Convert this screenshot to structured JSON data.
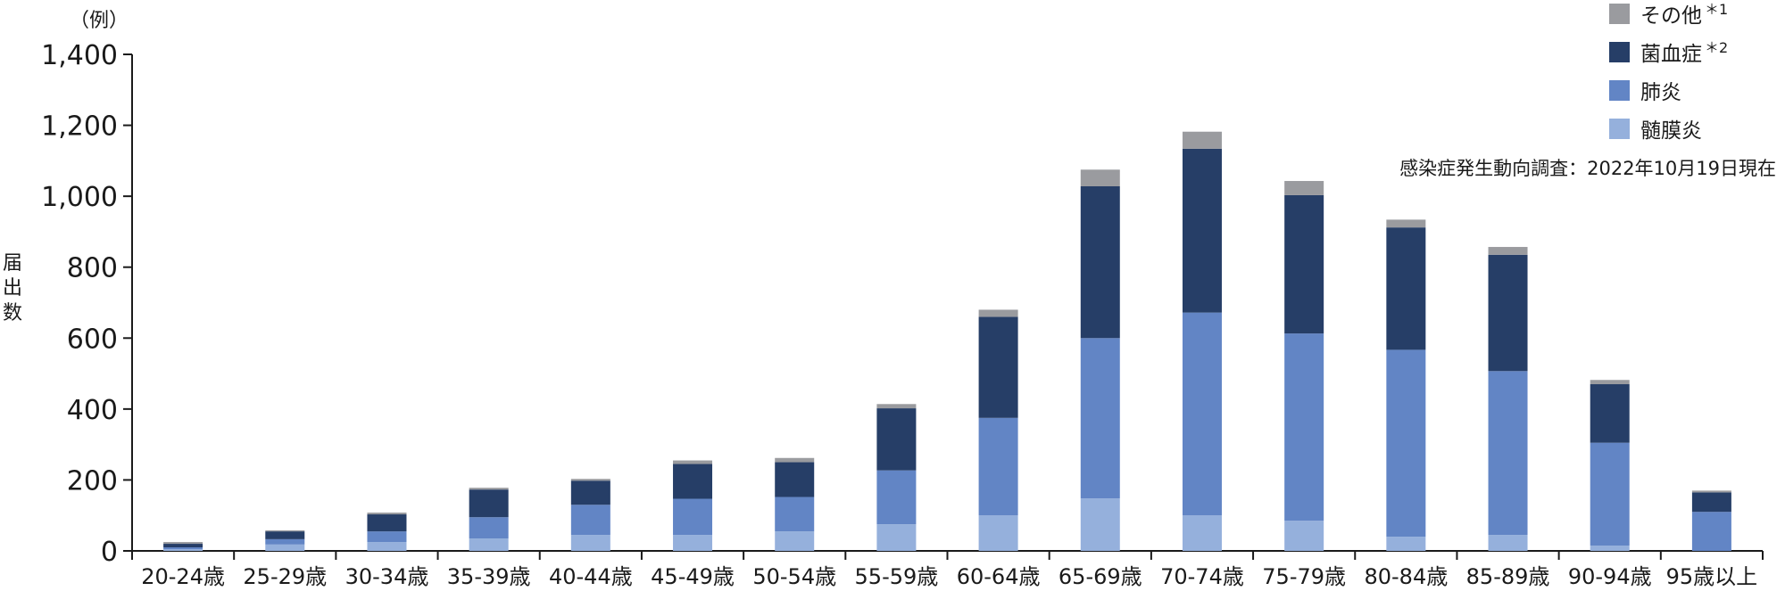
{
  "chart_data": {
    "type": "bar",
    "stacked": true,
    "unit_label": "（例）",
    "ylabel": "届出数",
    "ylim": [
      0,
      1400
    ],
    "yticks": [
      "0",
      "200",
      "400",
      "600",
      "800",
      "1,000",
      "1,200",
      "1,400"
    ],
    "ytick_values": [
      0,
      200,
      400,
      600,
      800,
      1000,
      1200,
      1400
    ],
    "categories": [
      "20-24歳",
      "25-29歳",
      "30-34歳",
      "35-39歳",
      "40-44歳",
      "45-49歳",
      "50-54歳",
      "55-59歳",
      "60-64歳",
      "65-69歳",
      "70-74歳",
      "75-79歳",
      "80-84歳",
      "85-89歳",
      "90-94歳",
      "95歳以上"
    ],
    "series": [
      {
        "name": "髄膜炎",
        "color": "#95b0dc",
        "values": [
          5,
          18,
          25,
          35,
          45,
          45,
          55,
          75,
          100,
          148,
          100,
          85,
          40,
          45,
          15,
          0
        ]
      },
      {
        "name": "肺炎",
        "color": "#6285c5",
        "values": [
          5,
          15,
          30,
          60,
          85,
          102,
          97,
          152,
          275,
          452,
          572,
          528,
          527,
          462,
          290,
          110
        ]
      },
      {
        "name": "菌血症",
        "color": "#263e67",
        "values": [
          10,
          22,
          48,
          78,
          68,
          98,
          98,
          175,
          285,
          428,
          462,
          390,
          345,
          328,
          165,
          55
        ]
      },
      {
        "name": "その他",
        "color": "#9a9b9f",
        "values": [
          5,
          3,
          5,
          5,
          5,
          10,
          12,
          12,
          20,
          47,
          48,
          40,
          22,
          22,
          12,
          5
        ]
      }
    ],
    "legend": {
      "position": "top-right",
      "items": [
        {
          "label": "その他",
          "sup": "＊1",
          "color": "#9a9b9f"
        },
        {
          "label": "菌血症",
          "sup": "＊2",
          "color": "#263e67"
        },
        {
          "label": "肺炎",
          "sup": "",
          "color": "#6285c5"
        },
        {
          "label": "髄膜炎",
          "sup": "",
          "color": "#95b0dc"
        }
      ]
    },
    "note": "感染症発生動向調査：2022年10月19日現在",
    "grid": false
  }
}
